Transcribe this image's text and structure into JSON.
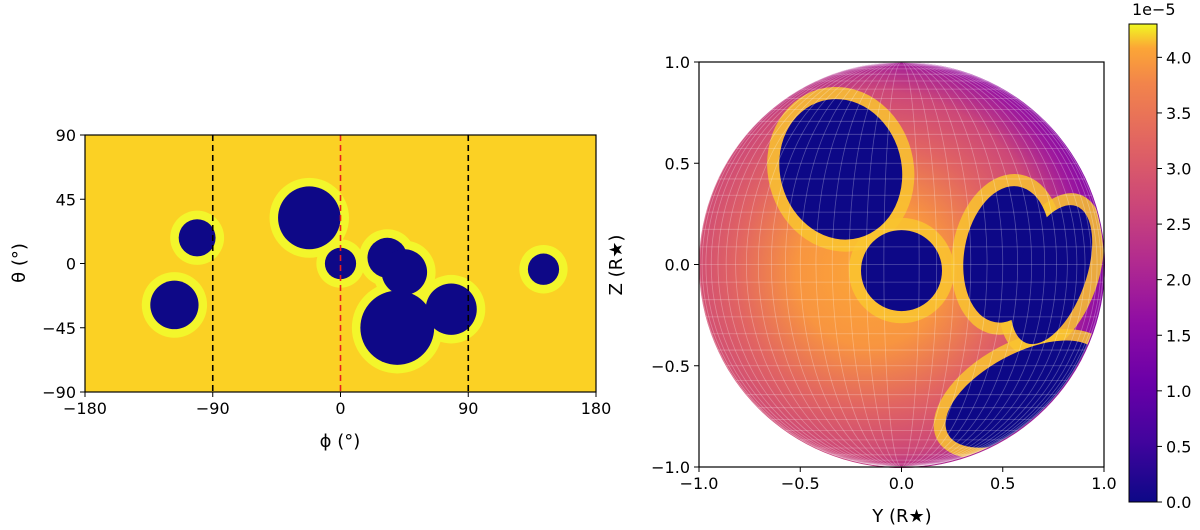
{
  "chart_data": [
    {
      "type": "heatmap",
      "panel": "left",
      "description": "Equirectangular surface map with dark spots and bright faculae rings",
      "xlabel": "ϕ (°)",
      "ylabel": "θ (°)",
      "xlim": [
        -180,
        180
      ],
      "ylim": [
        -90,
        90
      ],
      "xticks": [
        -180,
        -90,
        0,
        90,
        180
      ],
      "xtick_labels": [
        "−180",
        "−90",
        "0",
        "90",
        "180"
      ],
      "yticks": [
        -90,
        -45,
        0,
        45,
        90
      ],
      "ytick_labels": [
        "−90",
        "−45",
        "0",
        "45",
        "90"
      ],
      "vlines": [
        {
          "x": -90,
          "color": "#000000",
          "style": "dashed"
        },
        {
          "x": 0,
          "color": "#e8211d",
          "style": "dashed"
        },
        {
          "x": 90,
          "color": "#000000",
          "style": "dashed"
        }
      ],
      "colors": {
        "photosphere": "#fbd124",
        "facula": "#f3f62b",
        "spot": "#0e0887"
      },
      "spots": [
        {
          "phi": -101,
          "theta": 18,
          "r": 13
        },
        {
          "phi": -117,
          "theta": -29,
          "r": 17
        },
        {
          "phi": -22,
          "theta": 32,
          "r": 22
        },
        {
          "phi": 0,
          "theta": 0,
          "r": 11
        },
        {
          "phi": 33,
          "theta": 4,
          "r": 14
        },
        {
          "phi": 45,
          "theta": -6,
          "r": 16
        },
        {
          "phi": 40,
          "theta": -45,
          "r": 26
        },
        {
          "phi": 78,
          "theta": -32,
          "r": 18
        },
        {
          "phi": 143,
          "theta": -4,
          "r": 11
        }
      ]
    },
    {
      "type": "heatmap",
      "panel": "right",
      "description": "Projected stellar disc intensity with limb darkening and spots",
      "xlabel": "Y (R★)",
      "ylabel": "Z (R★)",
      "xlim": [
        -1.0,
        1.0
      ],
      "ylim": [
        -1.0,
        1.0
      ],
      "xticks": [
        -1.0,
        -0.5,
        0.0,
        0.5,
        1.0
      ],
      "xtick_labels": [
        "−1.0",
        "−0.5",
        "0.0",
        "0.5",
        "1.0"
      ],
      "yticks": [
        -1.0,
        -0.5,
        0.0,
        0.5,
        1.0
      ],
      "ytick_labels": [
        "−1.0",
        "−0.5",
        "0.0",
        "0.5",
        "1.0"
      ],
      "colorbar": {
        "colormap": "plasma",
        "range": [
          0.0,
          4.3e-05
        ],
        "offset_label": "1e−5",
        "ticks": [
          0.0,
          0.5,
          1.0,
          1.5,
          2.0,
          2.5,
          3.0,
          3.5,
          4.0
        ],
        "tick_labels": [
          "0.0",
          "0.5",
          "1.0",
          "1.5",
          "2.0",
          "2.5",
          "3.0",
          "3.5",
          "4.0"
        ]
      },
      "spots": [
        {
          "y": -0.3,
          "z": 0.47,
          "rx": 0.3,
          "ry": 0.35,
          "rot": -15
        },
        {
          "y": 0.0,
          "z": -0.03,
          "rx": 0.2,
          "ry": 0.2,
          "rot": 0
        },
        {
          "y": 0.52,
          "z": 0.05,
          "rx": 0.21,
          "ry": 0.34,
          "rot": 10
        },
        {
          "y": 0.74,
          "z": -0.05,
          "rx": 0.17,
          "ry": 0.36,
          "rot": 20
        },
        {
          "y": 0.6,
          "z": -0.64,
          "rx": 0.42,
          "ry": 0.2,
          "rot": -28
        }
      ]
    }
  ]
}
